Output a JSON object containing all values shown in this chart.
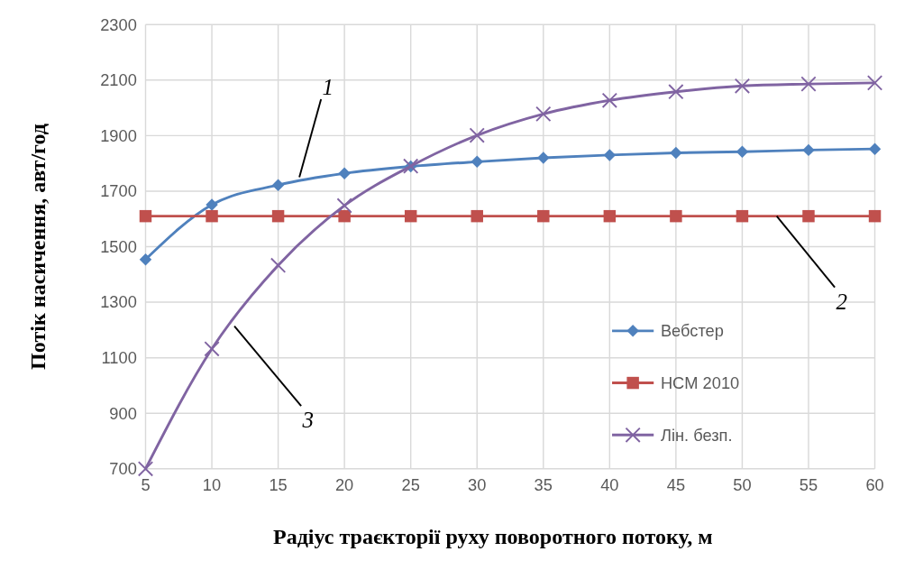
{
  "chart_data": {
    "type": "line",
    "xlabel": "Радіус траєкторії руху поворотного потоку, м",
    "ylabel": "Потік насичення, авт/год",
    "x": [
      5,
      10,
      15,
      20,
      25,
      30,
      35,
      40,
      45,
      50,
      55,
      60
    ],
    "xlim": [
      5,
      60
    ],
    "xticks": [
      5,
      10,
      15,
      20,
      25,
      30,
      35,
      40,
      45,
      50,
      55,
      60
    ],
    "ylim": [
      700,
      2300
    ],
    "yticks": [
      700,
      900,
      1100,
      1300,
      1500,
      1700,
      1900,
      2100,
      2300
    ],
    "grid": true,
    "legend": "right",
    "line_style": "solid",
    "series": [
      {
        "name": "Вебстер",
        "color": "#4f81bd",
        "marker": "diamond",
        "values": [
          1454,
          1651,
          1722,
          1764,
          1789,
          1806,
          1820,
          1830,
          1838,
          1842,
          1848,
          1852
        ]
      },
      {
        "name": "HCM 2010",
        "color": "#c0504d",
        "marker": "square",
        "values": [
          1610,
          1610,
          1610,
          1610,
          1610,
          1610,
          1610,
          1610,
          1610,
          1610,
          1610,
          1610
        ]
      },
      {
        "name": "Лін. безп.",
        "color": "#8064a2",
        "marker": "cross",
        "values": [
          700,
          1132,
          1433,
          1648,
          1790,
          1901,
          1978,
          2027,
          2058,
          2079,
          2086,
          2090
        ]
      }
    ],
    "annotations": [
      {
        "text": "1",
        "x": 16.6,
        "y": 1750
      },
      {
        "text": "2",
        "x": 52.6,
        "y": 1610
      },
      {
        "text": "3",
        "x": 11.7,
        "y": 1214
      }
    ]
  }
}
